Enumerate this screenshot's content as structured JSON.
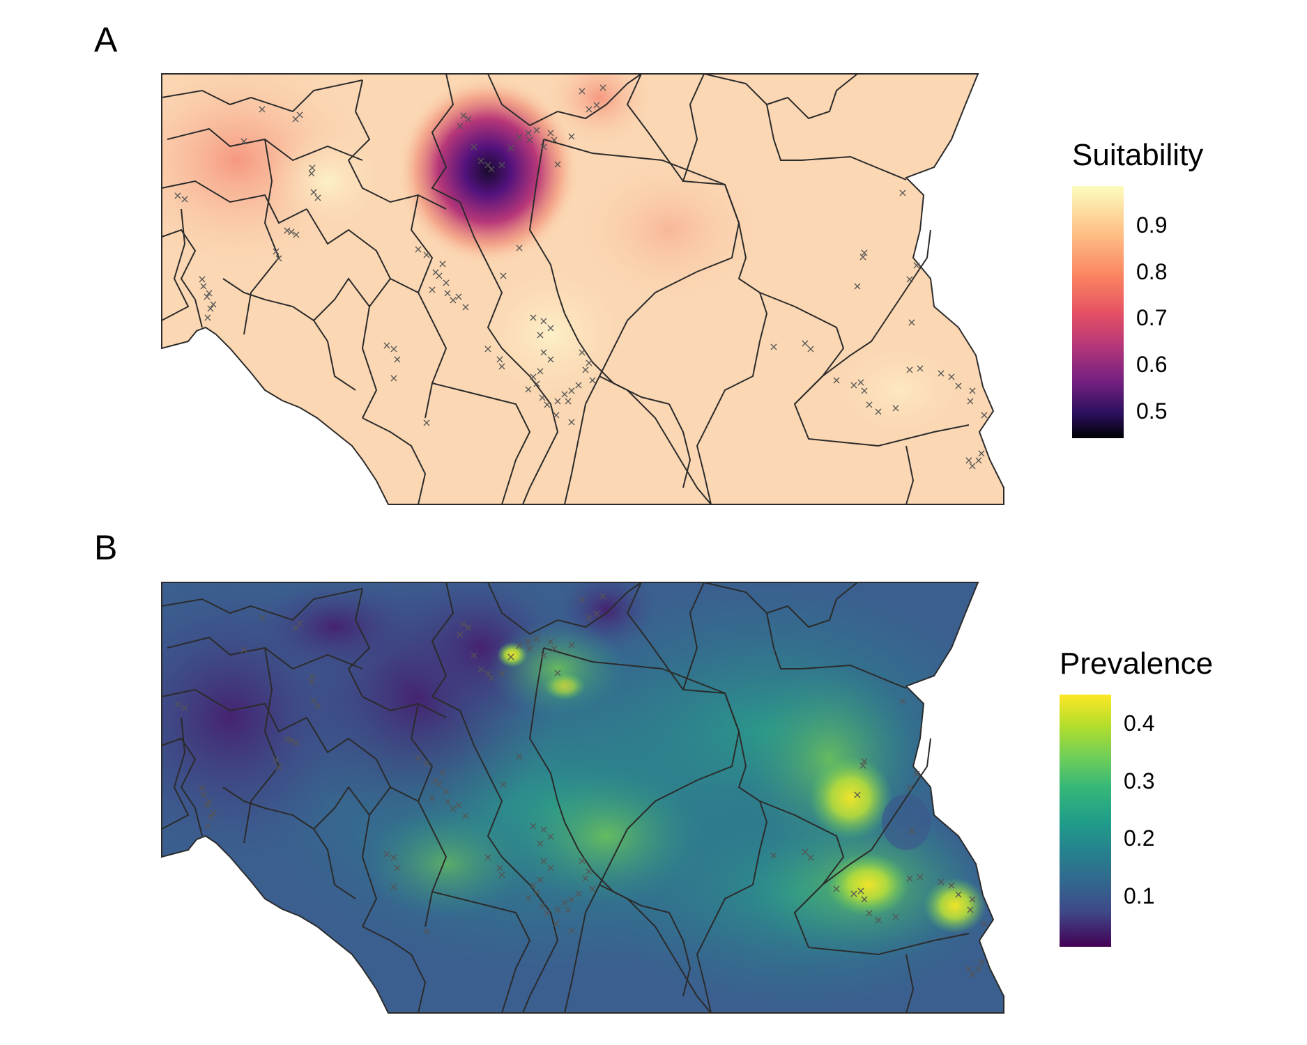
{
  "panel_a": {
    "letter": "A",
    "legend_title": "Suitability",
    "legend_ticks": [
      "0.9",
      "0.8",
      "0.7",
      "0.6",
      "0.5"
    ],
    "colors": [
      "#fcfdbf",
      "#fc8961",
      "#b73779",
      "#51127c",
      "#000004"
    ]
  },
  "panel_b": {
    "letter": "B",
    "legend_title": "Prevalence",
    "legend_ticks": [
      "0.4",
      "0.3",
      "0.2",
      "0.1"
    ],
    "colors": [
      "#fde725",
      "#5ec962",
      "#21918c",
      "#3b528b",
      "#440154"
    ]
  },
  "marker_symbol": "×",
  "marker_color": "#555555"
}
